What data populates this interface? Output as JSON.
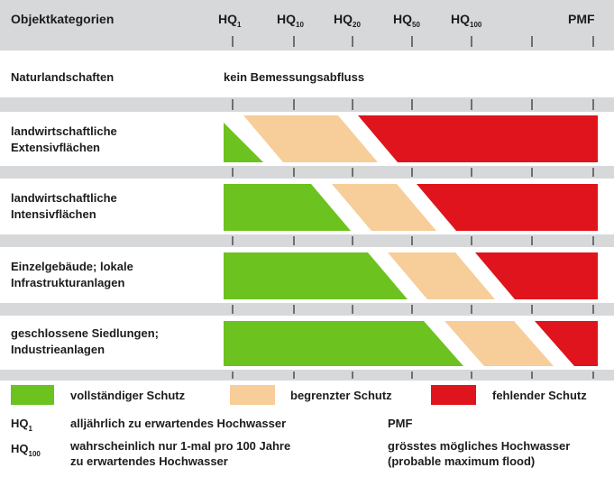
{
  "header": {
    "title": "Objektkategorien",
    "levels": [
      {
        "main": "HQ",
        "sub": "1"
      },
      {
        "main": "HQ",
        "sub": "10"
      },
      {
        "main": "HQ",
        "sub": "20"
      },
      {
        "main": "HQ",
        "sub": "50"
      },
      {
        "main": "HQ",
        "sub": "100"
      },
      {
        "main": "PMF"
      }
    ]
  },
  "rows": [
    {
      "label": [
        "Naturlandschaften"
      ],
      "note": "kein Bemessungsabfluss"
    },
    {
      "label": [
        "landwirtschaftliche",
        "Extensivflächen"
      ]
    },
    {
      "label": [
        "landwirtschaftliche",
        "Intensivflächen"
      ]
    },
    {
      "label": [
        "Einzelgebäude; lokale",
        "Infrastrukturanlagen"
      ]
    },
    {
      "label": [
        "geschlossene Siedlungen;",
        "Industrieanlagen"
      ]
    }
  ],
  "legend": [
    "vollständiger Schutz",
    "begrenzter Schutz",
    "fehlender Schutz"
  ],
  "definitions": [
    {
      "term": {
        "main": "HQ",
        "sub": "1"
      },
      "text": [
        "alljährlich zu erwartendes Hochwasser"
      ]
    },
    {
      "term": {
        "main": "HQ",
        "sub": "100"
      },
      "text": [
        "wahrscheinlich nur 1-mal pro 100 Jahre",
        "zu erwartendes Hochwasser"
      ]
    },
    {
      "term": {
        "main": "PMF"
      },
      "text": [
        "grösstes mögliches Hochwasser",
        "(probable maximum flood)"
      ]
    }
  ]
}
